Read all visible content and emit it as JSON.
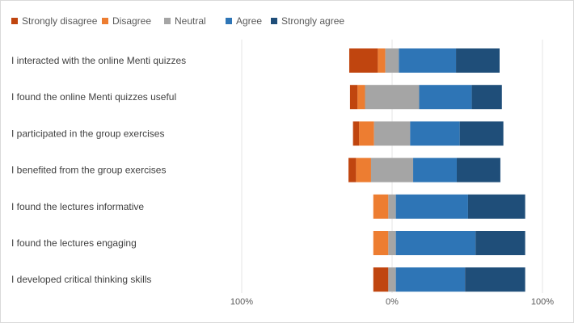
{
  "chart_data": {
    "type": "bar",
    "orientation": "horizontal",
    "stacked": "diverging",
    "legend_position": "top-left",
    "grid": true,
    "xlim": [
      -100,
      100
    ],
    "x_ticks": [
      {
        "value": -100,
        "label": "100%"
      },
      {
        "value": 0,
        "label": "0%"
      },
      {
        "value": 100,
        "label": "100%"
      }
    ],
    "categories": [
      "I interacted with the online Menti quizzes",
      "I found the online Menti quizzes useful",
      "I participated in the group exercises",
      "I benefited from the group exercises",
      "I found the lectures informative",
      "I found the lectures engaging",
      "I developed critical thinking skills"
    ],
    "series": [
      {
        "name": "Strongly disagree",
        "color": "#c0450f",
        "values": [
          19,
          5,
          4,
          5,
          0,
          0,
          10
        ]
      },
      {
        "name": "Disagree",
        "color": "#ed7d31",
        "values": [
          5,
          5,
          10,
          10,
          10,
          10,
          0
        ]
      },
      {
        "name": "Neutral",
        "color": "#a5a5a5",
        "values": [
          9,
          36,
          24,
          28,
          5,
          5,
          5
        ]
      },
      {
        "name": "Agree",
        "color": "#2e75b6",
        "values": [
          38,
          35,
          33,
          29,
          48,
          53,
          46
        ]
      },
      {
        "name": "Strongly agree",
        "color": "#1f4e79",
        "values": [
          29,
          20,
          29,
          29,
          38,
          33,
          40
        ]
      }
    ]
  }
}
